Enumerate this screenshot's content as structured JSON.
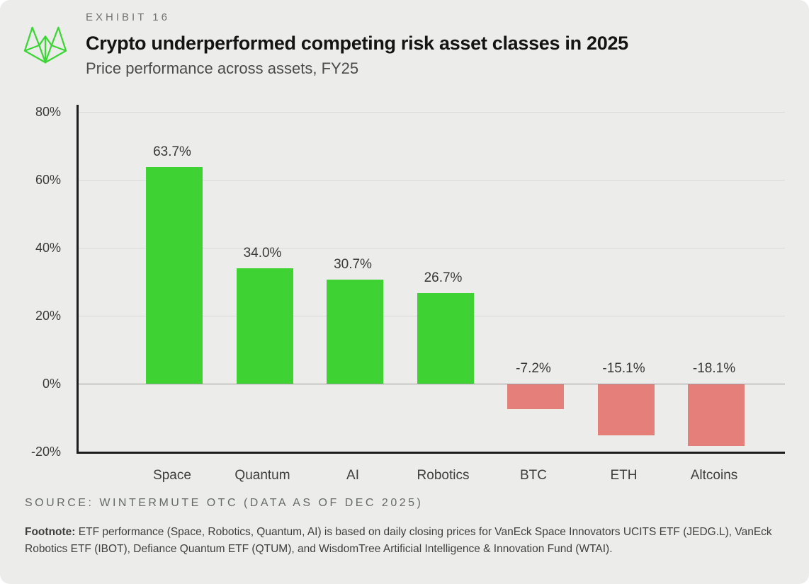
{
  "header": {
    "exhibit_label": "EXHIBIT 16",
    "title": "Crypto underperformed competing risk asset classes in 2025",
    "subtitle": "Price performance across assets, FY25"
  },
  "chart_data": {
    "type": "bar",
    "title": "Crypto underperformed competing risk asset classes in 2025",
    "subtitle": "Price performance across assets, FY25",
    "categories": [
      "Space",
      "Quantum",
      "AI",
      "Robotics",
      "BTC",
      "ETH",
      "Altcoins"
    ],
    "values": [
      63.7,
      34.0,
      30.7,
      26.7,
      -7.2,
      -15.1,
      -18.1
    ],
    "value_labels": [
      "63.7%",
      "34.0%",
      "30.7%",
      "26.7%",
      "-7.2%",
      "-15.1%",
      "-18.1%"
    ],
    "y_tick_values": [
      80,
      60,
      40,
      20,
      0,
      -20
    ],
    "y_tick_labels": [
      "80%",
      "60%",
      "40%",
      "20%",
      "0%",
      "-20%"
    ],
    "ylim": [
      -20,
      80
    ],
    "xlabel": "",
    "ylabel": "",
    "grid": true,
    "legend_position": "none",
    "positive_color": "#3ed233",
    "negative_color": "#e57f7a"
  },
  "footer": {
    "source": "SOURCE: WINTERMUTE OTC (DATA AS OF DEC 2025)",
    "footnote_label": "Footnote:",
    "footnote_text": "ETF performance (Space, Robotics, Quantum, AI) is based on daily closing prices for VanEck Space Innovators UCITS ETF (JEDG.L), VanEck Robotics ETF (IBOT), Defiance Quantum ETF (QTUM), and WisdomTree Artificial Intelligence & Innovation Fund (WTAI)."
  },
  "colors": {
    "card_background": "#ececea",
    "brand_green": "#3bd635",
    "axis": "#1c1c1c",
    "gridline": "#d9d9d9",
    "zero_line": "#9a9a9a"
  }
}
